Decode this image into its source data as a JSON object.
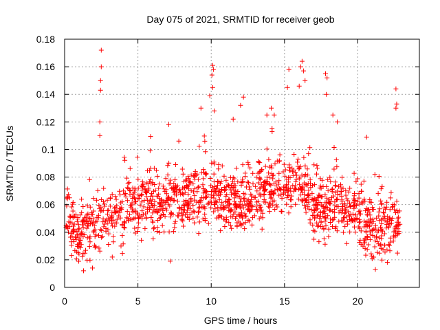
{
  "chart_data": {
    "type": "scatter",
    "title": "Day 075 of 2021, SRMTID for receiver geob",
    "xlabel": "GPS time / hours",
    "ylabel": "SRMTID / TECUs",
    "xlim": [
      0,
      24.2
    ],
    "ylim": [
      0,
      0.18
    ],
    "xticks": [
      0,
      5,
      10,
      15,
      20
    ],
    "xtick_labels": [
      "0",
      "5",
      "10",
      "15",
      "20"
    ],
    "yticks": [
      0,
      0.02,
      0.04,
      0.06,
      0.08,
      0.1,
      0.12,
      0.14,
      0.16,
      0.18
    ],
    "ytick_labels": [
      "0",
      "0.02",
      "0.04",
      "0.06",
      "0.08",
      "0.1",
      "0.12",
      "0.14",
      "0.16",
      "0.18"
    ],
    "grid": true,
    "marker": "+",
    "color": "#ff0000",
    "x_range_hours": [
      0,
      22.9
    ],
    "series": [
      {
        "name": "SRMTID",
        "trend": [
          [
            0.0,
            0.055
          ],
          [
            0.5,
            0.045
          ],
          [
            1.0,
            0.035
          ],
          [
            1.5,
            0.038
          ],
          [
            2.0,
            0.045
          ],
          [
            2.5,
            0.05
          ],
          [
            3.0,
            0.045
          ],
          [
            3.5,
            0.05
          ],
          [
            4.0,
            0.055
          ],
          [
            4.5,
            0.06
          ],
          [
            5.0,
            0.06
          ],
          [
            5.5,
            0.063
          ],
          [
            6.0,
            0.06
          ],
          [
            6.5,
            0.062
          ],
          [
            7.0,
            0.065
          ],
          [
            7.5,
            0.063
          ],
          [
            8.0,
            0.062
          ],
          [
            8.5,
            0.063
          ],
          [
            9.0,
            0.065
          ],
          [
            9.5,
            0.068
          ],
          [
            10.0,
            0.068
          ],
          [
            10.5,
            0.066
          ],
          [
            11.0,
            0.06
          ],
          [
            11.5,
            0.06
          ],
          [
            12.0,
            0.063
          ],
          [
            12.5,
            0.062
          ],
          [
            13.0,
            0.068
          ],
          [
            13.5,
            0.068
          ],
          [
            14.0,
            0.072
          ],
          [
            14.5,
            0.072
          ],
          [
            15.0,
            0.068
          ],
          [
            15.5,
            0.072
          ],
          [
            16.0,
            0.078
          ],
          [
            16.5,
            0.07
          ],
          [
            17.0,
            0.06
          ],
          [
            17.5,
            0.058
          ],
          [
            18.0,
            0.06
          ],
          [
            18.5,
            0.063
          ],
          [
            19.0,
            0.058
          ],
          [
            19.5,
            0.055
          ],
          [
            20.0,
            0.052
          ],
          [
            20.5,
            0.045
          ],
          [
            21.0,
            0.04
          ],
          [
            21.5,
            0.042
          ],
          [
            22.0,
            0.045
          ],
          [
            22.5,
            0.045
          ],
          [
            22.9,
            0.05
          ]
        ],
        "spikes": [
          {
            "x": 2.5,
            "y": 0.172
          },
          {
            "x": 2.5,
            "y": 0.16
          },
          {
            "x": 2.45,
            "y": 0.15
          },
          {
            "x": 2.45,
            "y": 0.143
          },
          {
            "x": 2.4,
            "y": 0.12
          },
          {
            "x": 2.4,
            "y": 0.11
          },
          {
            "x": 10.1,
            "y": 0.161
          },
          {
            "x": 10.15,
            "y": 0.158
          },
          {
            "x": 10.05,
            "y": 0.154
          },
          {
            "x": 10.1,
            "y": 0.145
          },
          {
            "x": 10.2,
            "y": 0.128
          },
          {
            "x": 9.9,
            "y": 0.139
          },
          {
            "x": 16.2,
            "y": 0.164
          },
          {
            "x": 16.1,
            "y": 0.16
          },
          {
            "x": 16.3,
            "y": 0.157
          },
          {
            "x": 16.4,
            "y": 0.15
          },
          {
            "x": 16.0,
            "y": 0.146
          },
          {
            "x": 15.3,
            "y": 0.158
          },
          {
            "x": 15.2,
            "y": 0.145
          },
          {
            "x": 17.8,
            "y": 0.155
          },
          {
            "x": 17.9,
            "y": 0.152
          },
          {
            "x": 17.85,
            "y": 0.14
          },
          {
            "x": 22.6,
            "y": 0.144
          },
          {
            "x": 22.65,
            "y": 0.133
          },
          {
            "x": 22.6,
            "y": 0.13
          },
          {
            "x": 12.2,
            "y": 0.138
          },
          {
            "x": 12.0,
            "y": 0.132
          },
          {
            "x": 14.1,
            "y": 0.13
          },
          {
            "x": 14.3,
            "y": 0.125
          },
          {
            "x": 13.8,
            "y": 0.125
          },
          {
            "x": 18.3,
            "y": 0.125
          },
          {
            "x": 18.6,
            "y": 0.12
          },
          {
            "x": 9.3,
            "y": 0.13
          },
          {
            "x": 7.1,
            "y": 0.118
          },
          {
            "x": 11.5,
            "y": 0.122
          },
          {
            "x": 20.6,
            "y": 0.109
          },
          {
            "x": 7.2,
            "y": 0.019
          },
          {
            "x": 21.2,
            "y": 0.013
          },
          {
            "x": 1.9,
            "y": 0.014
          }
        ]
      }
    ]
  }
}
